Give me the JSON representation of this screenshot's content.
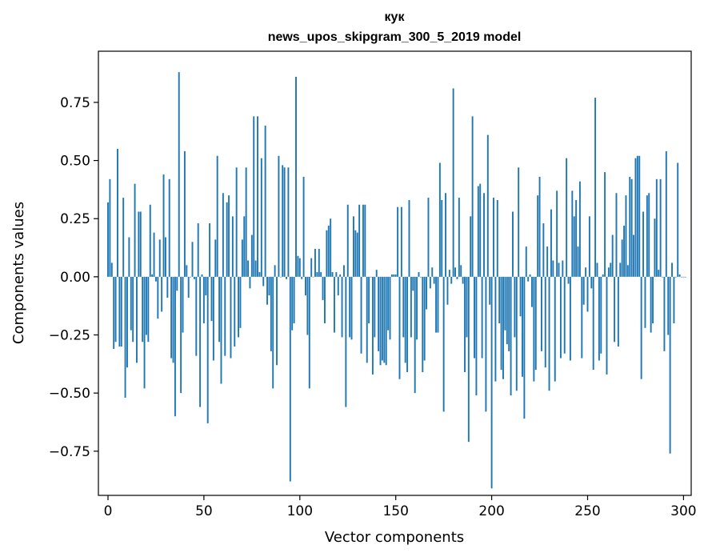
{
  "chart_data": {
    "type": "bar",
    "title": "кук",
    "subtitle": "news_upos_skipgram_300_5_2019 model",
    "xlabel": "Vector components",
    "ylabel": "Components values",
    "xlim": [
      -5,
      304
    ],
    "ylim": [
      -0.94,
      0.97
    ],
    "xticks": [
      0,
      50,
      100,
      150,
      200,
      250,
      300
    ],
    "yticks": [
      -0.75,
      -0.5,
      -0.25,
      0.0,
      0.25,
      0.5,
      0.75
    ],
    "xtick_labels": [
      "0",
      "50",
      "100",
      "150",
      "200",
      "250",
      "300"
    ],
    "ytick_labels": [
      "−0.75",
      "−0.50",
      "−0.25",
      "0.00",
      "0.25",
      "0.50",
      "0.75"
    ],
    "grid": false,
    "bar_color": "#1f77b4",
    "values": [
      0.32,
      0.42,
      0.06,
      -0.31,
      -0.28,
      0.55,
      -0.3,
      -0.3,
      0.34,
      -0.52,
      -0.39,
      0.17,
      -0.23,
      -0.28,
      0.4,
      -0.37,
      0.28,
      0.28,
      -0.28,
      -0.48,
      -0.25,
      -0.28,
      0.31,
      0.01,
      0.19,
      -0.02,
      -0.18,
      0.16,
      -0.15,
      0.44,
      0.17,
      -0.09,
      0.42,
      -0.35,
      -0.37,
      -0.6,
      -0.06,
      0.88,
      -0.5,
      -0.24,
      0.54,
      0.05,
      -0.09,
      0.0,
      0.15,
      -0.01,
      -0.34,
      0.23,
      -0.56,
      0.01,
      -0.2,
      -0.08,
      -0.63,
      0.23,
      -0.19,
      -0.36,
      0.16,
      0.52,
      -0.28,
      -0.46,
      0.36,
      -0.34,
      0.32,
      0.35,
      -0.35,
      0.26,
      -0.3,
      0.47,
      -0.26,
      -0.22,
      0.16,
      0.26,
      0.47,
      0.07,
      -0.05,
      0.18,
      0.69,
      0.07,
      0.69,
      0.02,
      0.51,
      -0.04,
      0.65,
      -0.12,
      -0.08,
      -0.32,
      -0.48,
      0.05,
      -0.38,
      0.52,
      0.0,
      0.48,
      0.47,
      -0.01,
      0.47,
      -0.88,
      -0.23,
      -0.2,
      0.86,
      0.09,
      0.08,
      -0.01,
      0.43,
      -0.08,
      -0.25,
      -0.48,
      0.08,
      0.0,
      0.12,
      0.02,
      0.12,
      0.02,
      -0.1,
      -0.2,
      0.2,
      0.22,
      0.25,
      0.02,
      -0.24,
      0.02,
      -0.08,
      0.01,
      -0.26,
      0.05,
      -0.56,
      0.31,
      -0.26,
      -0.27,
      0.26,
      0.2,
      0.19,
      0.31,
      -0.33,
      0.31,
      0.31,
      -0.37,
      -0.2,
      0.0,
      -0.42,
      -0.26,
      0.03,
      -0.32,
      -0.38,
      -0.36,
      -0.37,
      -0.38,
      -0.23,
      -0.27,
      0.01,
      0.01,
      0.01,
      0.3,
      -0.44,
      0.3,
      -0.26,
      -0.37,
      -0.41,
      0.33,
      -0.26,
      -0.06,
      -0.5,
      -0.27,
      0.02,
      0.0,
      -0.41,
      -0.36,
      -0.14,
      0.34,
      -0.05,
      0.04,
      -0.03,
      -0.24,
      -0.24,
      0.49,
      0.33,
      -0.58,
      0.36,
      -0.12,
      0.03,
      -0.03,
      0.81,
      0.04,
      -0.01,
      0.34,
      0.05,
      -0.03,
      -0.41,
      -0.26,
      -0.71,
      0.26,
      0.69,
      -0.35,
      -0.51,
      0.39,
      0.4,
      -0.35,
      0.36,
      -0.58,
      0.61,
      -0.12,
      -0.91,
      0.34,
      -0.45,
      0.33,
      -0.2,
      -0.4,
      -0.44,
      -0.23,
      -0.29,
      -0.32,
      -0.51,
      0.28,
      -0.26,
      -0.49,
      0.47,
      -0.17,
      -0.43,
      -0.61,
      0.13,
      -0.02,
      0.01,
      -0.13,
      -0.45,
      -0.4,
      0.35,
      0.43,
      -0.32,
      0.23,
      -0.39,
      0.13,
      -0.49,
      0.29,
      0.07,
      -0.45,
      0.37,
      0.06,
      -0.35,
      0.07,
      -0.33,
      0.51,
      -0.03,
      -0.36,
      0.37,
      0.26,
      0.33,
      0.13,
      0.41,
      -0.35,
      -0.12,
      0.04,
      -0.15,
      0.26,
      -0.05,
      -0.4,
      0.77,
      0.06,
      -0.36,
      -0.33,
      0.01,
      0.45,
      -0.42,
      0.04,
      0.06,
      0.18,
      -0.28,
      0.36,
      -0.3,
      0.06,
      0.16,
      0.22,
      0.35,
      0.05,
      0.43,
      0.42,
      0.18,
      0.51,
      0.52,
      0.52,
      -0.44,
      0.28,
      -0.22,
      0.35,
      0.36,
      -0.24,
      -0.2,
      0.25,
      0.42,
      0.03,
      0.42,
      0.0,
      -0.32,
      0.54,
      -0.25,
      -0.76,
      0.06,
      -0.2,
      0.0,
      0.49,
      0.01,
      0.0,
      0.0,
      0.0
    ]
  }
}
